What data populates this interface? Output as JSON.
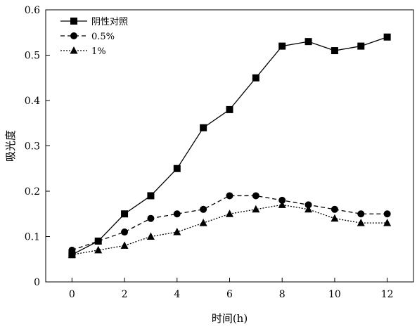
{
  "chart_data": {
    "type": "line",
    "title": "",
    "xlabel": "时间(h)",
    "ylabel": "吸光度",
    "x": [
      0,
      1,
      2,
      3,
      4,
      5,
      6,
      7,
      8,
      9,
      10,
      11,
      12
    ],
    "xlim": [
      -1,
      13
    ],
    "ylim": [
      0,
      0.6
    ],
    "x_ticks": [
      0,
      2,
      4,
      6,
      8,
      10,
      12
    ],
    "y_ticks": [
      0,
      0.1,
      0.2,
      0.3,
      0.4,
      0.5,
      0.6
    ],
    "x_tick_labels": [
      "0",
      "2",
      "4",
      "6",
      "8",
      "10",
      "12"
    ],
    "y_tick_labels": [
      "0",
      "0.1",
      "0.2",
      "0.3",
      "0.4",
      "0.5",
      "0.6"
    ],
    "grid": false,
    "legend_position": "top-left",
    "series": [
      {
        "name": "阴性对照",
        "marker": "square",
        "line_style": "solid",
        "color": "#000000",
        "values": [
          0.06,
          0.09,
          0.15,
          0.19,
          0.25,
          0.34,
          0.38,
          0.45,
          0.52,
          0.53,
          0.51,
          0.52,
          0.54
        ]
      },
      {
        "name": "0.5%",
        "marker": "circle",
        "line_style": "dashed",
        "color": "#000000",
        "values": [
          0.07,
          0.09,
          0.11,
          0.14,
          0.15,
          0.16,
          0.19,
          0.19,
          0.18,
          0.17,
          0.16,
          0.15,
          0.15
        ]
      },
      {
        "name": "1%",
        "marker": "triangle",
        "line_style": "dotted",
        "color": "#000000",
        "values": [
          0.06,
          0.07,
          0.08,
          0.1,
          0.11,
          0.13,
          0.15,
          0.16,
          0.17,
          0.16,
          0.14,
          0.13,
          0.13
        ]
      }
    ]
  }
}
